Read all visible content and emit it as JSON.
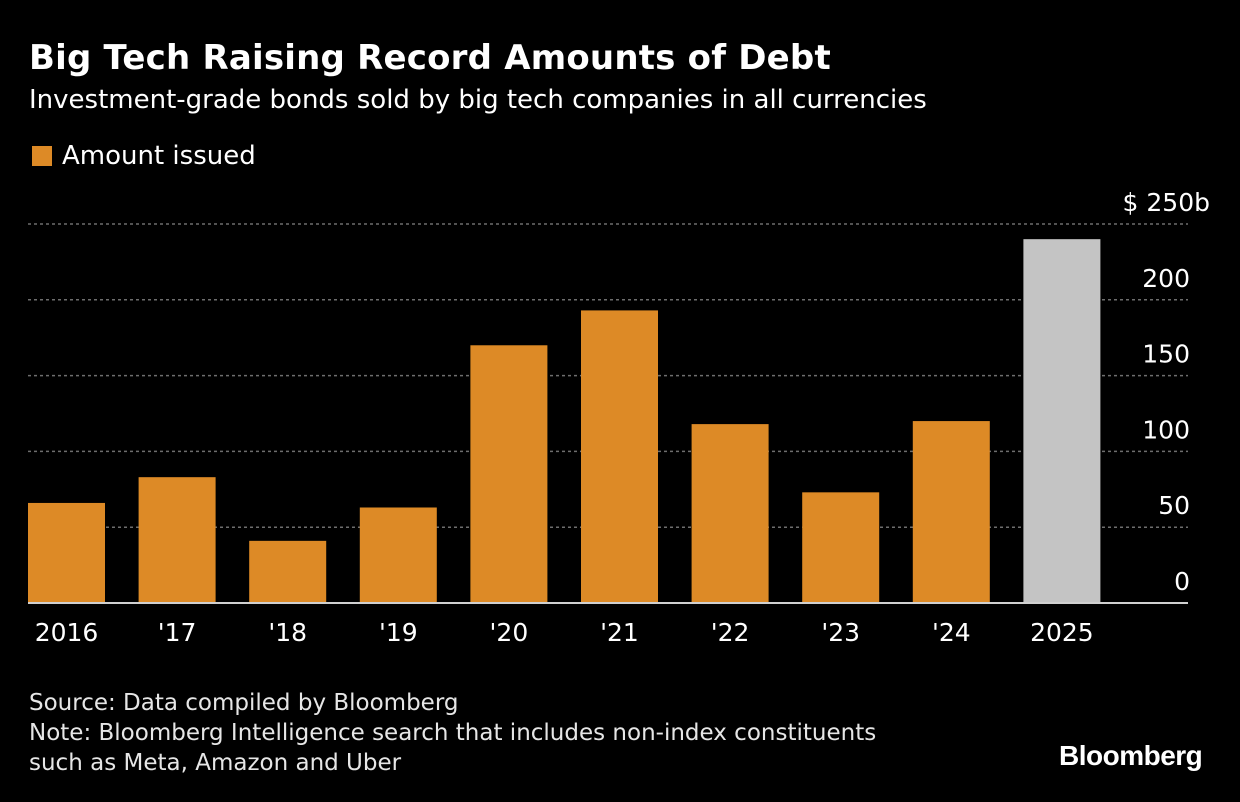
{
  "chart_data": {
    "type": "bar",
    "title": "Big Tech Raising Record Amounts of Debt",
    "subtitle": "Investment-grade bonds sold by big tech companies in all currencies",
    "legend": [
      {
        "label": "Amount issued",
        "color": "#dd8a26"
      }
    ],
    "legend_position": "top-left",
    "categories": [
      "2016",
      "'17",
      "'18",
      "'19",
      "'20",
      "'21",
      "'22",
      "'23",
      "'24",
      "2025"
    ],
    "series": [
      {
        "name": "Amount issued",
        "values": [
          66,
          83,
          41,
          63,
          170,
          193,
          118,
          73,
          120,
          240
        ],
        "colors": [
          "#dd8a26",
          "#dd8a26",
          "#dd8a26",
          "#dd8a26",
          "#dd8a26",
          "#dd8a26",
          "#dd8a26",
          "#dd8a26",
          "#dd8a26",
          "#c4c4c4"
        ]
      }
    ],
    "ylim": [
      0,
      250
    ],
    "yticks": [
      0,
      50,
      100,
      150,
      200,
      250
    ],
    "ytick_labels": [
      "0",
      "50",
      "100",
      "150",
      "200",
      "$ 250b"
    ],
    "y_axis_position": "right",
    "grid": true,
    "xlabel": "",
    "ylabel": ""
  },
  "footer": {
    "source": "Source: Data compiled by Bloomberg",
    "note_line1": "Note: Bloomberg Intelligence search that includes non-index constituents",
    "note_line2": "such as Meta, Amazon and Uber"
  },
  "brand": "Bloomberg",
  "colors": {
    "background": "#000000",
    "bar": "#dd8a26",
    "bar_highlight": "#c4c4c4",
    "gridline": "#6e6e6e",
    "text": "#ffffff"
  }
}
